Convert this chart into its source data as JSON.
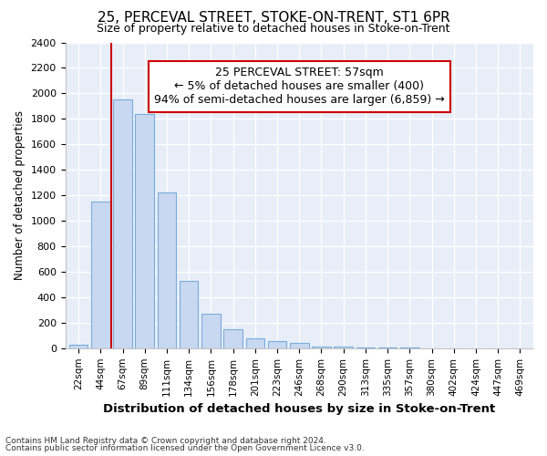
{
  "title": "25, PERCEVAL STREET, STOKE-ON-TRENT, ST1 6PR",
  "subtitle": "Size of property relative to detached houses in Stoke-on-Trent",
  "xlabel": "Distribution of detached houses by size in Stoke-on-Trent",
  "ylabel": "Number of detached properties",
  "categories": [
    "22sqm",
    "44sqm",
    "67sqm",
    "89sqm",
    "111sqm",
    "134sqm",
    "156sqm",
    "178sqm",
    "201sqm",
    "223sqm",
    "246sqm",
    "268sqm",
    "290sqm",
    "313sqm",
    "335sqm",
    "357sqm",
    "380sqm",
    "402sqm",
    "424sqm",
    "447sqm",
    "469sqm"
  ],
  "values": [
    30,
    1150,
    1950,
    1840,
    1225,
    525,
    270,
    150,
    80,
    55,
    40,
    10,
    10,
    5,
    5,
    3,
    2,
    2,
    1,
    1,
    1
  ],
  "bar_color": "#c8d8f0",
  "bar_edge_color": "#7aacdc",
  "annotation_text": "25 PERCEVAL STREET: 57sqm\n← 5% of detached houses are smaller (400)\n94% of semi-detached houses are larger (6,859) →",
  "vline_x": 1.5,
  "vline_color": "#cc0000",
  "annotation_box_facecolor": "#ffffff",
  "annotation_box_edgecolor": "#cc0000",
  "ylim": [
    0,
    2400
  ],
  "yticks": [
    0,
    200,
    400,
    600,
    800,
    1000,
    1200,
    1400,
    1600,
    1800,
    2000,
    2200,
    2400
  ],
  "footer1": "Contains HM Land Registry data © Crown copyright and database right 2024.",
  "footer2": "Contains public sector information licensed under the Open Government Licence v3.0.",
  "fig_bg_color": "#ffffff",
  "plot_bg_color": "#e8eef8"
}
